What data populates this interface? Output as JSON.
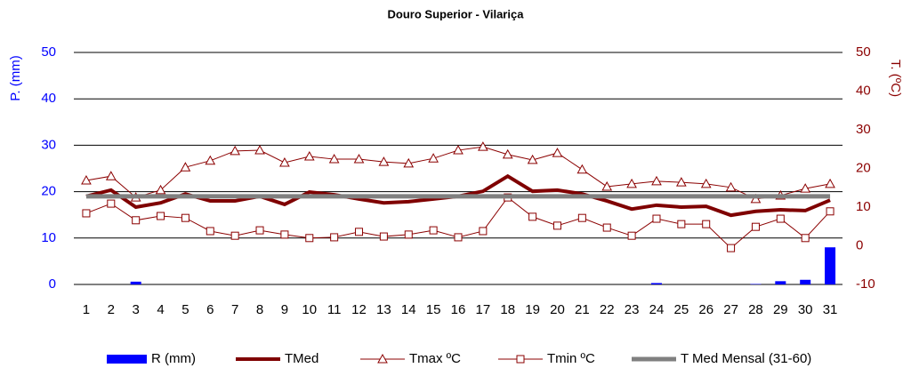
{
  "chart_data": {
    "type": "bar-line",
    "title": "Douro Superior - Vilariça",
    "y_label": "P. (mm)",
    "y2_label": "T. (ºC)",
    "categories": [
      "1",
      "2",
      "3",
      "4",
      "5",
      "6",
      "7",
      "8",
      "9",
      "10",
      "11",
      "12",
      "13",
      "14",
      "15",
      "16",
      "17",
      "18",
      "19",
      "20",
      "21",
      "22",
      "23",
      "24",
      "25",
      "26",
      "27",
      "28",
      "29",
      "30",
      "31"
    ],
    "ylim": [
      0,
      50
    ],
    "yticks": [
      0,
      10,
      20,
      30,
      40,
      50
    ],
    "y2lim": [
      -10,
      50
    ],
    "y2ticks": [
      -10,
      0,
      10,
      20,
      30,
      40,
      50
    ],
    "grid": true,
    "legend": "bottom",
    "series": [
      {
        "name": "R (mm)",
        "kind": "bar",
        "color": "#0000ff",
        "values": [
          0,
          0,
          0.6,
          0,
          0,
          0,
          0,
          0,
          0,
          0,
          0,
          0,
          0,
          0,
          0,
          0,
          0,
          0,
          0,
          0,
          0,
          0,
          0,
          0.3,
          0,
          0,
          0,
          0.1,
          0.7,
          1.0,
          8.0
        ]
      },
      {
        "name": "TMed",
        "kind": "line",
        "axis": "y2",
        "color": "#7f0000",
        "width": 4,
        "values": [
          12.8,
          14.4,
          10,
          11.1,
          13.4,
          11.6,
          11.6,
          12.8,
          10.7,
          13.9,
          13.2,
          12.1,
          11.1,
          11.4,
          12.1,
          12.8,
          14.1,
          18,
          14.1,
          14.4,
          13.4,
          11.6,
          9.5,
          10.5,
          10,
          10.2,
          7.9,
          8.9,
          9.3,
          9.1,
          11.8
        ]
      },
      {
        "name": "Tmax ºC",
        "kind": "line",
        "axis": "y2",
        "color": "#8b0000",
        "width": 1,
        "marker": "triangle",
        "values": [
          16.9,
          18,
          12.5,
          14.4,
          20.3,
          22,
          24.5,
          24.7,
          21.5,
          23.1,
          22.4,
          22.4,
          21.7,
          21.3,
          22.6,
          24.7,
          25.6,
          23.6,
          22.2,
          24,
          19.7,
          15.3,
          16,
          16.7,
          16.4,
          16,
          15.1,
          12.1,
          13,
          14.8,
          16
        ]
      },
      {
        "name": "Tmin ºC",
        "kind": "line",
        "axis": "y2",
        "color": "#8b0000",
        "width": 1,
        "marker": "square",
        "values": [
          8.4,
          10.9,
          6.6,
          7.7,
          7.2,
          3.8,
          2.6,
          4,
          2.9,
          2,
          2.2,
          3.6,
          2.4,
          2.9,
          4,
          2.2,
          3.8,
          12.5,
          7.5,
          5.2,
          7.2,
          4.7,
          2.6,
          7,
          5.6,
          5.6,
          -0.6,
          4.9,
          7,
          2,
          8.9
        ]
      },
      {
        "name": "T Med Mensal (31-60)",
        "kind": "line",
        "axis": "y2",
        "color": "#808080",
        "width": 5,
        "values": [
          12.8,
          12.8,
          12.8,
          12.8,
          12.8,
          12.8,
          12.8,
          12.8,
          12.8,
          12.8,
          12.8,
          12.8,
          12.8,
          12.8,
          12.8,
          12.8,
          12.8,
          12.8,
          12.8,
          12.8,
          12.8,
          12.8,
          12.8,
          12.8,
          12.8,
          12.8,
          12.8,
          12.8,
          12.8,
          12.8,
          12.8
        ]
      }
    ]
  }
}
